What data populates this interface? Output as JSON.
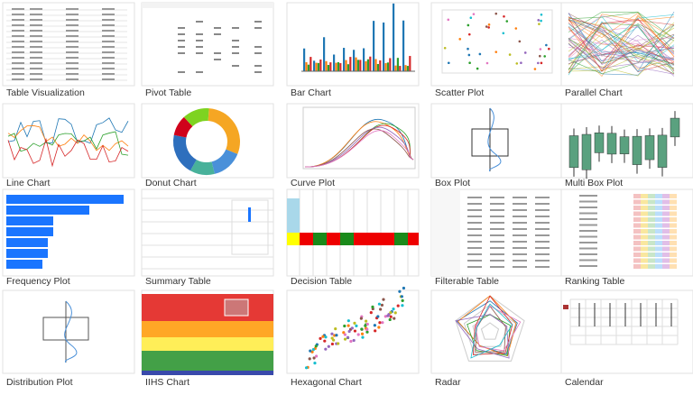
{
  "items": [
    "Table Visualization",
    "Pivot Table",
    "Bar Chart",
    "Scatter Plot",
    "Parallel Chart",
    "Line Chart",
    "Donut Chart",
    "Curve Plot",
    "Box Plot",
    "Multi Box Plot",
    "Frequency Plot",
    "Summary Table",
    "Decision Table",
    "Filterable Table",
    "Ranking Table",
    "Distribution Plot",
    "IIHS Chart",
    "Hexagonal Chart",
    "Radar",
    "Calendar"
  ]
}
